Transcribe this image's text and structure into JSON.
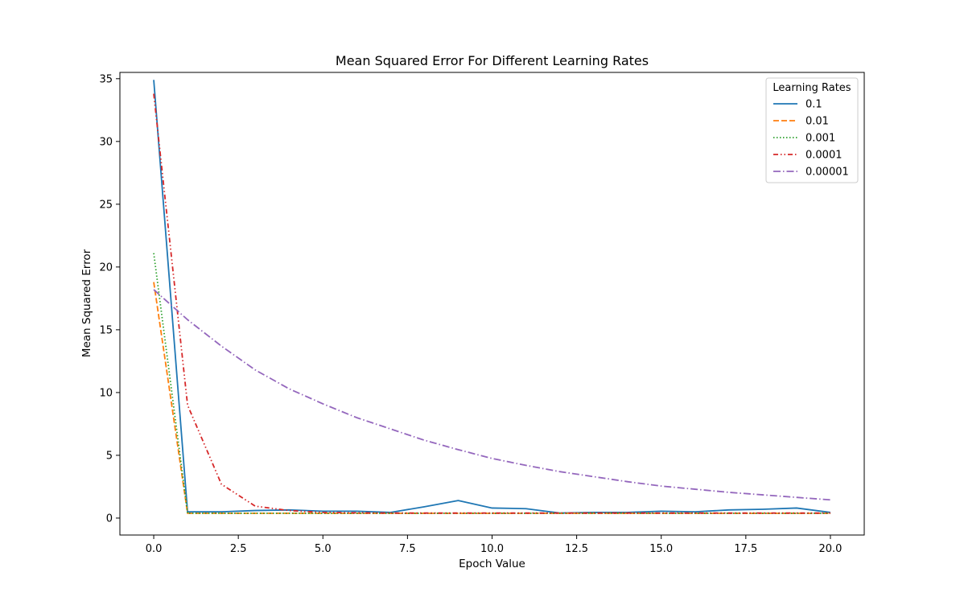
{
  "chart_data": {
    "type": "line",
    "title": "Mean Squared Error For Different Learning Rates",
    "xlabel": "Epoch Value",
    "ylabel": "Mean Squared Error",
    "xlim": [
      -1.0,
      21.0
    ],
    "ylim": [
      -1.35,
      35.5
    ],
    "xticks": [
      0.0,
      2.5,
      5.0,
      7.5,
      10.0,
      12.5,
      15.0,
      17.5,
      20.0
    ],
    "xtick_labels": [
      "0.0",
      "2.5",
      "5.0",
      "7.5",
      "10.0",
      "12.5",
      "15.0",
      "17.5",
      "20.0"
    ],
    "yticks": [
      0,
      5,
      10,
      15,
      20,
      25,
      30,
      35
    ],
    "ytick_labels": [
      "0",
      "5",
      "10",
      "15",
      "20",
      "25",
      "30",
      "35"
    ],
    "grid": false,
    "legend": {
      "title": "Learning Rates",
      "position": "top-right"
    },
    "x": [
      0,
      1,
      2,
      3,
      4,
      5,
      6,
      7,
      8,
      9,
      10,
      11,
      12,
      13,
      14,
      15,
      16,
      17,
      18,
      19,
      20
    ],
    "series": [
      {
        "name": "0.1",
        "color": "#1f77b4",
        "dash": "solid",
        "values": [
          34.9,
          0.5,
          0.5,
          0.6,
          0.65,
          0.55,
          0.55,
          0.45,
          0.9,
          1.4,
          0.8,
          0.75,
          0.4,
          0.45,
          0.45,
          0.55,
          0.5,
          0.65,
          0.7,
          0.8,
          0.45
        ]
      },
      {
        "name": "0.01",
        "color": "#ff7f0e",
        "dash": "dashed",
        "values": [
          18.8,
          0.38,
          0.38,
          0.38,
          0.38,
          0.38,
          0.38,
          0.38,
          0.38,
          0.38,
          0.38,
          0.38,
          0.38,
          0.38,
          0.38,
          0.38,
          0.38,
          0.38,
          0.38,
          0.38,
          0.38
        ]
      },
      {
        "name": "0.001",
        "color": "#2ca02c",
        "dash": "dotted",
        "values": [
          21.1,
          0.38,
          0.38,
          0.38,
          0.38,
          0.38,
          0.38,
          0.38,
          0.38,
          0.38,
          0.38,
          0.38,
          0.38,
          0.38,
          0.38,
          0.38,
          0.38,
          0.38,
          0.38,
          0.38,
          0.38
        ]
      },
      {
        "name": "0.0001",
        "color": "#d62728",
        "dash": "dashdotdot",
        "values": [
          33.8,
          9.0,
          2.7,
          0.95,
          0.6,
          0.45,
          0.42,
          0.4,
          0.4,
          0.4,
          0.4,
          0.4,
          0.4,
          0.4,
          0.4,
          0.4,
          0.4,
          0.4,
          0.4,
          0.4,
          0.4
        ]
      },
      {
        "name": "0.00001",
        "color": "#9467bd",
        "dash": "dashdot",
        "values": [
          18.2,
          15.8,
          13.7,
          11.8,
          10.3,
          9.1,
          8.0,
          7.1,
          6.2,
          5.45,
          4.75,
          4.2,
          3.7,
          3.3,
          2.9,
          2.55,
          2.3,
          2.05,
          1.85,
          1.65,
          1.45
        ]
      }
    ]
  }
}
